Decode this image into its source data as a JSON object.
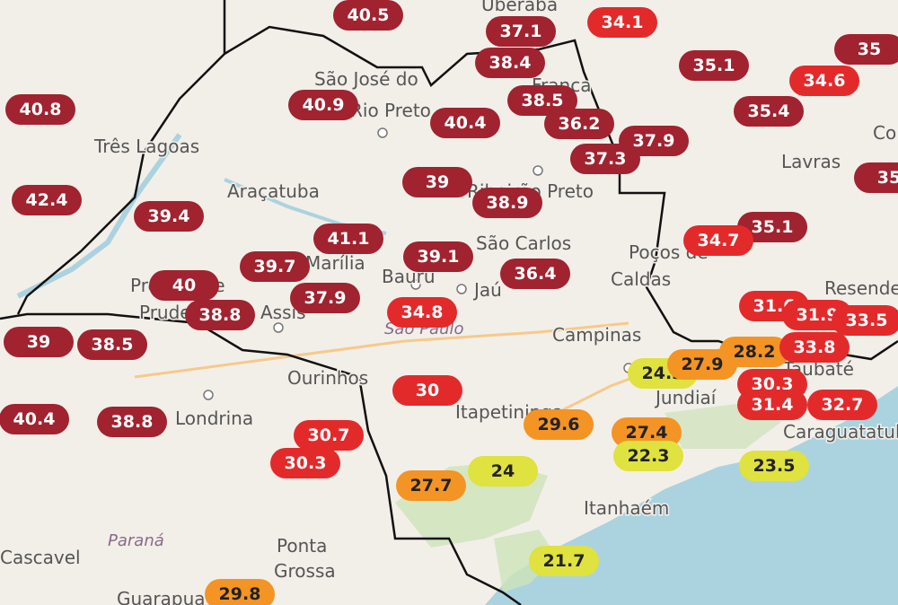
{
  "places": [
    "Uberaba",
    "São José do",
    "Rio Preto",
    "Franca",
    "Três Lagoas",
    "Araçatuba",
    "Ribeirão Preto",
    "São Carlos",
    "Lavras",
    "Poços de",
    "Caldas",
    "Marília",
    "Bauru",
    "Jaú",
    "Presidente",
    "Prudente",
    "Assis",
    "Campinas",
    "Resende",
    "Ourinhos",
    "Itapetininga",
    "Jundiaí",
    "Londrina",
    "Taubaté",
    "Caraguatatuba",
    "Itanhaém",
    "Ponta",
    "Grossa",
    "Guarapuava",
    "Cascavel",
    "Co"
  ],
  "regions": [
    "São Paulo",
    "Paraná"
  ],
  "temperatures": [
    {
      "value": 40.5,
      "color": "#a0232f"
    },
    {
      "value": 37.1,
      "color": "#a0232f"
    },
    {
      "value": 34.1,
      "color": "#e32a2b"
    },
    {
      "value": 38.4,
      "color": "#a0232f"
    },
    {
      "value": 35.1,
      "color": "#a0232f"
    },
    {
      "value": 34.6,
      "color": "#e32a2b"
    },
    {
      "value": 40.8,
      "color": "#a0232f"
    },
    {
      "value": 40.9,
      "color": "#a0232f"
    },
    {
      "value": 40.4,
      "color": "#a0232f"
    },
    {
      "value": 38.5,
      "color": "#a0232f"
    },
    {
      "value": 36.2,
      "color": "#a0232f"
    },
    {
      "value": 35.4,
      "color": "#a0232f"
    },
    {
      "value": 37.9,
      "color": "#a0232f"
    },
    {
      "value": 37.3,
      "color": "#a0232f"
    },
    {
      "value": 39,
      "color": "#a0232f"
    },
    {
      "value": 38.9,
      "color": "#a0232f"
    },
    {
      "value": 42.4,
      "color": "#a0232f"
    },
    {
      "value": 39.4,
      "color": "#a0232f"
    },
    {
      "value": 35.1,
      "color": "#a0232f"
    },
    {
      "value": 34.7,
      "color": "#e32a2b"
    },
    {
      "value": 41.1,
      "color": "#a0232f"
    },
    {
      "value": 39.1,
      "color": "#a0232f"
    },
    {
      "value": 39.7,
      "color": "#a0232f"
    },
    {
      "value": 36.4,
      "color": "#a0232f"
    },
    {
      "value": 40,
      "color": "#a0232f"
    },
    {
      "value": 37.9,
      "color": "#a0232f"
    },
    {
      "value": 38.8,
      "color": "#a0232f"
    },
    {
      "value": 34.8,
      "color": "#e32a2b"
    },
    {
      "value": 39,
      "color": "#a0232f"
    },
    {
      "value": 38.5,
      "color": "#a0232f"
    },
    {
      "value": 30,
      "color": "#e32a2b"
    },
    {
      "value": 40.4,
      "color": "#a0232f"
    },
    {
      "value": 38.8,
      "color": "#a0232f"
    },
    {
      "value": 30.7,
      "color": "#e32a2b"
    },
    {
      "value": 30.3,
      "color": "#e32a2b"
    },
    {
      "value": 29.6,
      "color": "#f39425"
    },
    {
      "value": 27.4,
      "color": "#f39425"
    },
    {
      "value": 22.3,
      "color": "#dfe23f"
    },
    {
      "value": 24,
      "color": "#dfe23f"
    },
    {
      "value": 23.5,
      "color": "#dfe23f"
    },
    {
      "value": 27.7,
      "color": "#f39425"
    },
    {
      "value": 21.7,
      "color": "#dfe23f"
    },
    {
      "value": 29.8,
      "color": "#f39425"
    },
    {
      "value": 24.3,
      "color": "#dfe23f"
    },
    {
      "value": 27.9,
      "color": "#f39425"
    },
    {
      "value": 28.2,
      "color": "#f39425"
    },
    {
      "value": 31.6,
      "color": "#e32a2b"
    },
    {
      "value": 31.9,
      "color": "#e32a2b"
    },
    {
      "value": 33.5,
      "color": "#e32a2b"
    },
    {
      "value": 33.8,
      "color": "#e32a2b"
    },
    {
      "value": 30.3,
      "color": "#e32a2b"
    },
    {
      "value": 31.4,
      "color": "#e32a2b"
    },
    {
      "value": 32.7,
      "color": "#e32a2b"
    },
    {
      "value": 35,
      "color": "#a0232f"
    },
    {
      "value": 35,
      "color": "#a0232f"
    }
  ]
}
